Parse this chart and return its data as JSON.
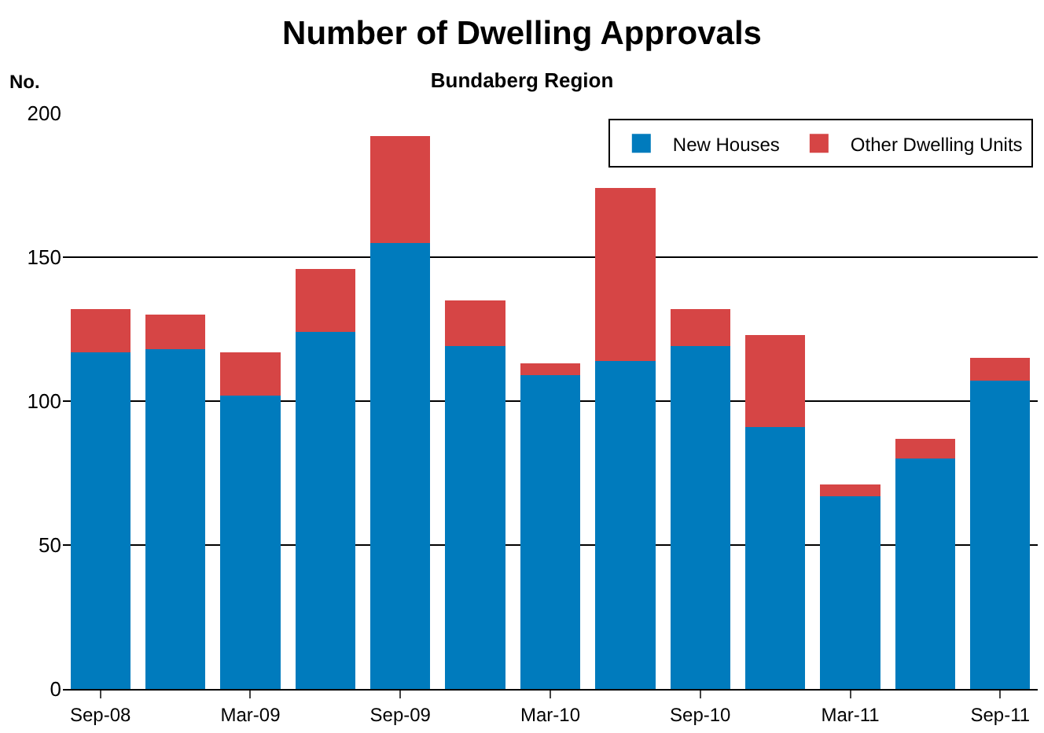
{
  "chart_data": {
    "type": "bar",
    "title": "Number of Dwelling Approvals",
    "subtitle": "Bundaberg Region",
    "ylabel": "No.",
    "categories": [
      "Sep-08",
      null,
      "Mar-09",
      null,
      "Sep-09",
      null,
      "Mar-10",
      null,
      "Sep-10",
      null,
      "Mar-11",
      null,
      "Sep-11"
    ],
    "stacked": true,
    "series": [
      {
        "name": "New Houses",
        "color": "#007bbd",
        "values": [
          117,
          118,
          102,
          124,
          155,
          119,
          109,
          114,
          119,
          91,
          67,
          80,
          107
        ]
      },
      {
        "name": "Other Dwelling Units",
        "color": "#d64545",
        "values": [
          15,
          12,
          15,
          22,
          37,
          16,
          4,
          60,
          13,
          32,
          4,
          7,
          8
        ]
      }
    ],
    "ylim": [
      0,
      200
    ],
    "yticks": [
      0,
      50,
      100,
      150,
      200
    ],
    "grid": "y",
    "legend": "top right"
  }
}
